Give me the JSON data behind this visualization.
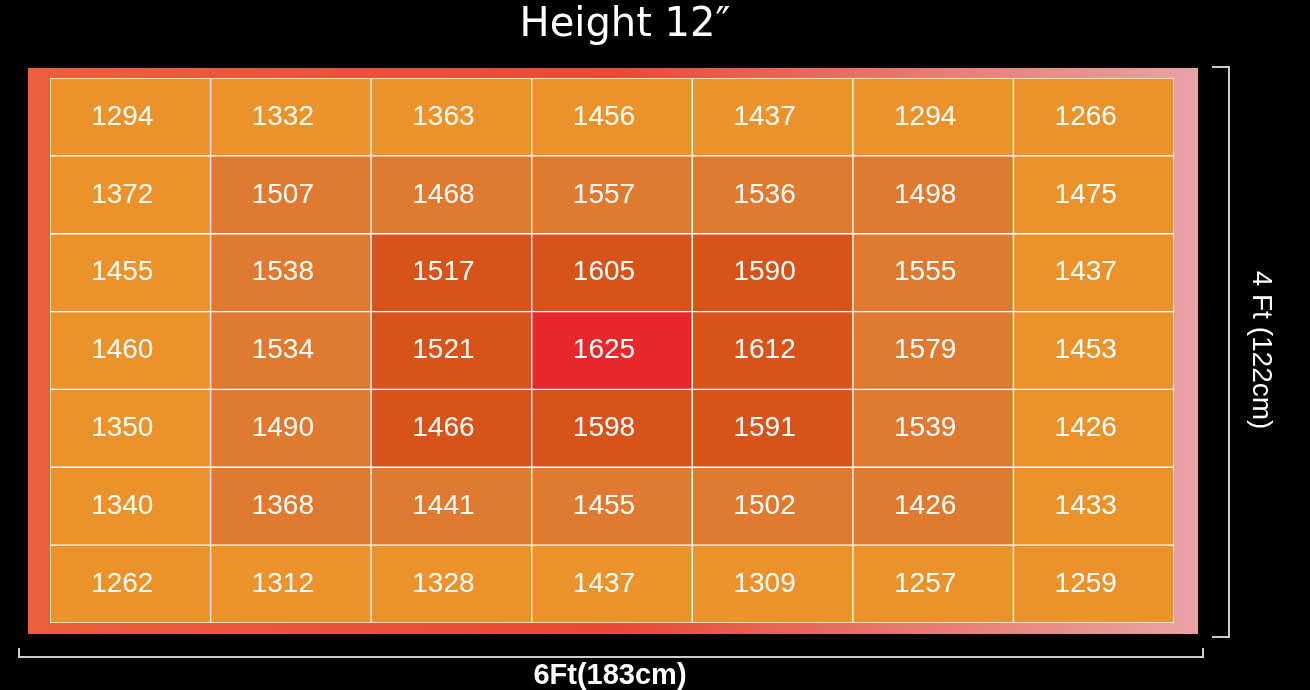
{
  "chart_data": {
    "type": "heatmap",
    "title": "Height 12″",
    "xlabel": "6Ft(183cm)",
    "ylabel": "4 Ft (122cm)",
    "categories": [
      null,
      null,
      null,
      null,
      null,
      null,
      null
    ],
    "y_categories": [
      null,
      null,
      null,
      null,
      null,
      null,
      null
    ],
    "cells": [
      [
        1294,
        1332,
        1363,
        1456,
        1437,
        1294,
        1266
      ],
      [
        1372,
        1507,
        1468,
        1557,
        1536,
        1498,
        1475
      ],
      [
        1455,
        1538,
        1517,
        1605,
        1590,
        1555,
        1437
      ],
      [
        1460,
        1534,
        1521,
        1625,
        1612,
        1579,
        1453
      ],
      [
        1350,
        1490,
        1466,
        1598,
        1591,
        1539,
        1426
      ],
      [
        1340,
        1368,
        1441,
        1455,
        1502,
        1426,
        1433
      ],
      [
        1262,
        1312,
        1328,
        1437,
        1309,
        1257,
        1259
      ]
    ],
    "colors": [
      [
        "#ec922a",
        "#ec922a",
        "#ec922a",
        "#ec922a",
        "#ec922a",
        "#ec922a",
        "#ec922a"
      ],
      [
        "#ec922a",
        "#e07a30",
        "#e07a30",
        "#e07a30",
        "#e07a30",
        "#e07a30",
        "#ec922a"
      ],
      [
        "#ec922a",
        "#e07a30",
        "#d7531a",
        "#d7531a",
        "#d7531a",
        "#e07a30",
        "#ec922a"
      ],
      [
        "#ec922a",
        "#e07a30",
        "#d7531a",
        "#e8272c",
        "#d7531a",
        "#e07a30",
        "#ec922a"
      ],
      [
        "#ec922a",
        "#e07a30",
        "#d7531a",
        "#d7531a",
        "#d7531a",
        "#e07a30",
        "#ec922a"
      ],
      [
        "#ec922a",
        "#e07a30",
        "#e07a30",
        "#e07a30",
        "#e07a30",
        "#e07a30",
        "#ec922a"
      ],
      [
        "#ec922a",
        "#ec922a",
        "#ec922a",
        "#ec922a",
        "#ec922a",
        "#ec922a",
        "#ec922a"
      ]
    ],
    "data_labels": true
  }
}
